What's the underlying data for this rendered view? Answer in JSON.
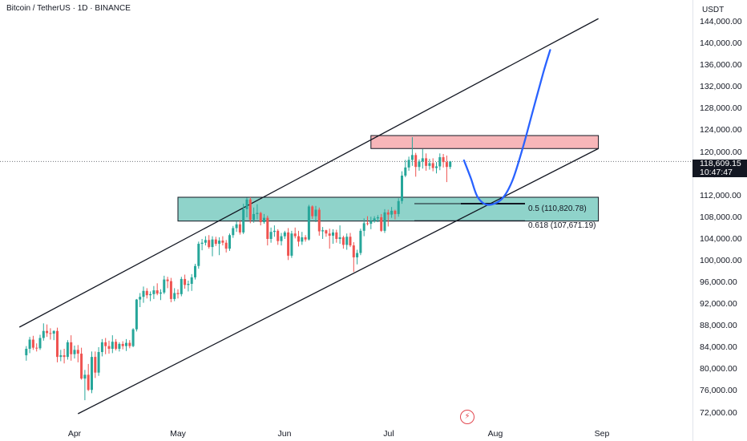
{
  "header": {
    "symbol_title": "Bitcoin / TetherUS · 1D · BINANCE"
  },
  "price_axis": {
    "unit": "USDT",
    "ticks": [
      "144,000.00",
      "140,000.00",
      "136,000.00",
      "132,000.00",
      "128,000.00",
      "124,000.00",
      "120,000.00",
      "116,000.00",
      "112,000.00",
      "108,000.00",
      "104,000.00",
      "100,000.00",
      "96,000.00",
      "92,000.00",
      "88,000.00",
      "84,000.00",
      "80,000.00",
      "76,000.00",
      "72,000.00"
    ],
    "last_price": "118,609.15",
    "countdown": "10:47:47"
  },
  "time_axis": {
    "ticks": [
      "Apr",
      "May",
      "Jun",
      "Jul",
      "Aug",
      "Sep"
    ]
  },
  "annotations": {
    "fib_05": "0.5 (110,820.78)",
    "fib_0618": "0.618 (107,671.19)"
  },
  "icons": {
    "flash": "flash-icon"
  },
  "colors": {
    "up": "#26a69a",
    "down": "#ef5350",
    "resistance_zone": "#f7b6b9",
    "support_zone": "#8fd3ca",
    "projection": "#2962ff",
    "channel": "#131722"
  },
  "chart_data": {
    "type": "candlestick",
    "title": "Bitcoin / TetherUS · 1D · BINANCE",
    "x_range": [
      "2025-03-18",
      "2025-09-08"
    ],
    "y_range": [
      71000,
      146000
    ],
    "ohlc_from": "2025-03-18",
    "ohlc_interval": "1D",
    "ohlc": [
      [
        82800,
        84500,
        81800,
        84000
      ],
      [
        84000,
        86200,
        83200,
        85700
      ],
      [
        85700,
        86400,
        83800,
        84200
      ],
      [
        84200,
        85000,
        83500,
        84100
      ],
      [
        84100,
        86600,
        83800,
        86000
      ],
      [
        86000,
        88700,
        85500,
        87300
      ],
      [
        87300,
        88500,
        86200,
        86900
      ],
      [
        86900,
        87800,
        85700,
        86800
      ],
      [
        86800,
        87400,
        85600,
        87300
      ],
      [
        87300,
        87900,
        81500,
        82500
      ],
      [
        82500,
        83800,
        81700,
        82800
      ],
      [
        82800,
        84000,
        81300,
        82500
      ],
      [
        82500,
        85600,
        82000,
        85200
      ],
      [
        85200,
        86500,
        81800,
        83000
      ],
      [
        83000,
        84600,
        82200,
        83800
      ],
      [
        83800,
        84700,
        81500,
        83100
      ],
      [
        83100,
        84200,
        78300,
        78500
      ],
      [
        78500,
        80100,
        74500,
        79200
      ],
      [
        79200,
        81200,
        76200,
        76400
      ],
      [
        76400,
        83500,
        75800,
        82500
      ],
      [
        82500,
        83500,
        78600,
        79600
      ],
      [
        79600,
        84300,
        79000,
        83400
      ],
      [
        83400,
        85800,
        82600,
        85200
      ],
      [
        85200,
        86000,
        83000,
        84500
      ],
      [
        84500,
        85500,
        83100,
        84000
      ],
      [
        84000,
        86500,
        83200,
        85300
      ],
      [
        85300,
        85800,
        83700,
        84000
      ],
      [
        84000,
        85200,
        83500,
        84900
      ],
      [
        84900,
        85400,
        83900,
        84500
      ],
      [
        84500,
        85800,
        83600,
        85100
      ],
      [
        85100,
        85600,
        84100,
        84500
      ],
      [
        84500,
        87800,
        84300,
        87600
      ],
      [
        87600,
        93200,
        87200,
        93100
      ],
      [
        93100,
        94300,
        91700,
        93600
      ],
      [
        93600,
        95500,
        92500,
        94700
      ],
      [
        94700,
        95200,
        93300,
        93900
      ],
      [
        93900,
        94600,
        92800,
        94100
      ],
      [
        94100,
        95600,
        93200,
        94800
      ],
      [
        94800,
        96100,
        93900,
        94200
      ],
      [
        94200,
        95000,
        93000,
        94400
      ],
      [
        94400,
        97500,
        94100,
        96800
      ],
      [
        96800,
        97300,
        95200,
        96500
      ],
      [
        96500,
        97100,
        92600,
        93200
      ],
      [
        93200,
        95200,
        92800,
        94300
      ],
      [
        94300,
        95000,
        93300,
        94100
      ],
      [
        94100,
        97300,
        93700,
        96900
      ],
      [
        96900,
        97700,
        95100,
        95800
      ],
      [
        95800,
        96600,
        94600,
        96000
      ],
      [
        96000,
        97800,
        94700,
        97200
      ],
      [
        97200,
        99700,
        96800,
        99300
      ],
      [
        99300,
        103800,
        98800,
        103400
      ],
      [
        103400,
        104300,
        102200,
        103600
      ],
      [
        103600,
        104800,
        103100,
        104100
      ],
      [
        104100,
        105000,
        102500,
        102800
      ],
      [
        102800,
        104800,
        101100,
        104200
      ],
      [
        104200,
        104700,
        103000,
        103400
      ],
      [
        103400,
        104600,
        101300,
        104000
      ],
      [
        104000,
        104800,
        103100,
        103600
      ],
      [
        103600,
        104100,
        101800,
        102500
      ],
      [
        102500,
        105300,
        102100,
        105000
      ],
      [
        105000,
        106700,
        104500,
        106300
      ],
      [
        106300,
        107500,
        105600,
        107000
      ],
      [
        107000,
        107800,
        105100,
        105500
      ],
      [
        105500,
        110800,
        105200,
        109800
      ],
      [
        109800,
        111900,
        108300,
        111600
      ],
      [
        111600,
        112000,
        107200,
        107800
      ],
      [
        107800,
        110100,
        107300,
        108900
      ],
      [
        108900,
        110700,
        107900,
        109100
      ],
      [
        109100,
        109300,
        106800,
        107400
      ],
      [
        107400,
        108900,
        107100,
        108200
      ],
      [
        108200,
        108600,
        103100,
        104300
      ],
      [
        104300,
        106400,
        103600,
        105600
      ],
      [
        105600,
        106800,
        104700,
        105800
      ],
      [
        105800,
        106100,
        103200,
        103900
      ],
      [
        103900,
        105400,
        103100,
        104800
      ],
      [
        104800,
        105800,
        104300,
        105500
      ],
      [
        105500,
        106300,
        100400,
        101200
      ],
      [
        101200,
        105800,
        100800,
        105300
      ],
      [
        105300,
        106400,
        104400,
        104800
      ],
      [
        104800,
        105800,
        102900,
        103800
      ],
      [
        103800,
        105600,
        103200,
        104600
      ],
      [
        104600,
        105000,
        103800,
        104200
      ],
      [
        104200,
        110600,
        104000,
        110300
      ],
      [
        110300,
        110500,
        108000,
        108500
      ],
      [
        108500,
        110400,
        107400,
        109700
      ],
      [
        109700,
        110100,
        104900,
        105700
      ],
      [
        105700,
        106500,
        104300,
        105900
      ],
      [
        105900,
        106000,
        104700,
        105300
      ],
      [
        105300,
        106200,
        102500,
        104900
      ],
      [
        104900,
        106100,
        103400,
        105500
      ],
      [
        105500,
        106000,
        103600,
        104300
      ],
      [
        104300,
        106800,
        103400,
        104600
      ],
      [
        104600,
        104900,
        102500,
        103200
      ],
      [
        103200,
        105300,
        102300,
        104700
      ],
      [
        104700,
        105400,
        102800,
        103100
      ],
      [
        103100,
        103700,
        98200,
        100900
      ],
      [
        100900,
        102300,
        99600,
        101700
      ],
      [
        101700,
        106200,
        101300,
        105800
      ],
      [
        105800,
        108100,
        104800,
        107200
      ],
      [
        107200,
        108500,
        106800,
        107100
      ],
      [
        107100,
        108400,
        106100,
        107600
      ],
      [
        107600,
        108500,
        107300,
        108100
      ],
      [
        108100,
        108700,
        107400,
        108300
      ],
      [
        108300,
        108900,
        105600,
        105800
      ],
      [
        105800,
        109800,
        105400,
        109200
      ],
      [
        109200,
        109700,
        106600,
        108800
      ],
      [
        108800,
        110200,
        108200,
        109500
      ],
      [
        109500,
        109700,
        107900,
        108900
      ],
      [
        108900,
        111800,
        108400,
        111300
      ],
      [
        111300,
        116800,
        110800,
        116000
      ],
      [
        116000,
        118900,
        115700,
        117500
      ],
      [
        117500,
        119500,
        116900,
        118900
      ],
      [
        118900,
        123100,
        117800,
        119800
      ],
      [
        119800,
        120200,
        115800,
        117600
      ],
      [
        117600,
        119000,
        116900,
        118600
      ],
      [
        118600,
        120900,
        117300,
        119200
      ],
      [
        119200,
        120100,
        116900,
        117800
      ],
      [
        117800,
        119100,
        117100,
        118300
      ],
      [
        118300,
        119200,
        116800,
        117400
      ],
      [
        117400,
        118500,
        116400,
        117700
      ],
      [
        117700,
        120100,
        117000,
        119400
      ],
      [
        119400,
        120000,
        117500,
        118500
      ],
      [
        118500,
        119700,
        114800,
        117600
      ],
      [
        117600,
        118700,
        117200,
        118609
      ]
    ],
    "channel_upper": [
      [
        "2025-03-16",
        88000
      ],
      [
        "2025-08-31",
        145000
      ]
    ],
    "channel_lower": [
      [
        "2025-04-02",
        72000
      ],
      [
        "2025-08-31",
        121000
      ]
    ],
    "resistance_zone": {
      "from": "2025-06-26",
      "to": "2025-08-31",
      "y": [
        121000,
        123400
      ]
    },
    "support_zone": {
      "from": "2025-05-01",
      "to": "2025-08-31",
      "y": [
        107600,
        112000
      ]
    },
    "fib_levels": [
      {
        "label": "0.5 (110,820.78)",
        "value": 110820.78
      },
      {
        "label": "0.618 (107,671.19)",
        "value": 107671.19
      }
    ],
    "last_price": 118609.15,
    "projection": [
      [
        "2025-07-23",
        118800
      ],
      [
        "2025-07-25",
        115500
      ],
      [
        "2025-07-27",
        112000
      ],
      [
        "2025-07-30",
        110600
      ],
      [
        "2025-08-03",
        111700
      ],
      [
        "2025-08-06",
        115000
      ],
      [
        "2025-08-09",
        121000
      ],
      [
        "2025-08-12",
        128000
      ],
      [
        "2025-08-15",
        135000
      ],
      [
        "2025-08-17",
        139200
      ]
    ]
  }
}
